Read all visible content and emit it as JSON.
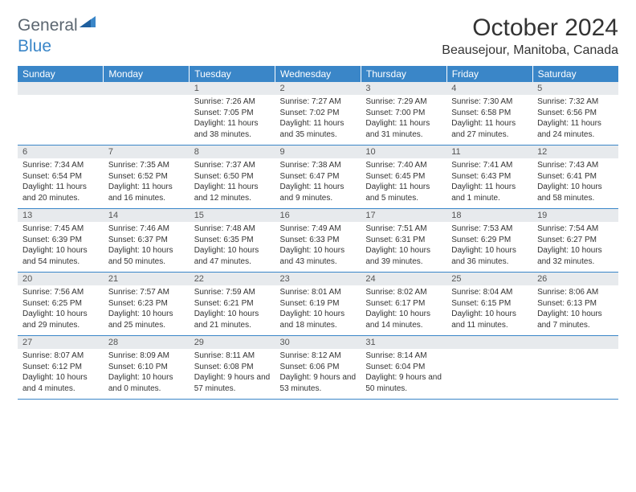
{
  "logo": {
    "text1": "General",
    "text2": "Blue"
  },
  "title": "October 2024",
  "location": "Beausejour, Manitoba, Canada",
  "dow_bg": "#3a86c8",
  "dow_color": "#ffffff",
  "daynum_bg": "#e7eaed",
  "border_color": "#3a86c8",
  "days_of_week": [
    "Sunday",
    "Monday",
    "Tuesday",
    "Wednesday",
    "Thursday",
    "Friday",
    "Saturday"
  ],
  "weeks": [
    [
      null,
      null,
      {
        "n": "1",
        "sr": "7:26 AM",
        "ss": "7:05 PM",
        "dl": "11 hours and 38 minutes."
      },
      {
        "n": "2",
        "sr": "7:27 AM",
        "ss": "7:02 PM",
        "dl": "11 hours and 35 minutes."
      },
      {
        "n": "3",
        "sr": "7:29 AM",
        "ss": "7:00 PM",
        "dl": "11 hours and 31 minutes."
      },
      {
        "n": "4",
        "sr": "7:30 AM",
        "ss": "6:58 PM",
        "dl": "11 hours and 27 minutes."
      },
      {
        "n": "5",
        "sr": "7:32 AM",
        "ss": "6:56 PM",
        "dl": "11 hours and 24 minutes."
      }
    ],
    [
      {
        "n": "6",
        "sr": "7:34 AM",
        "ss": "6:54 PM",
        "dl": "11 hours and 20 minutes."
      },
      {
        "n": "7",
        "sr": "7:35 AM",
        "ss": "6:52 PM",
        "dl": "11 hours and 16 minutes."
      },
      {
        "n": "8",
        "sr": "7:37 AM",
        "ss": "6:50 PM",
        "dl": "11 hours and 12 minutes."
      },
      {
        "n": "9",
        "sr": "7:38 AM",
        "ss": "6:47 PM",
        "dl": "11 hours and 9 minutes."
      },
      {
        "n": "10",
        "sr": "7:40 AM",
        "ss": "6:45 PM",
        "dl": "11 hours and 5 minutes."
      },
      {
        "n": "11",
        "sr": "7:41 AM",
        "ss": "6:43 PM",
        "dl": "11 hours and 1 minute."
      },
      {
        "n": "12",
        "sr": "7:43 AM",
        "ss": "6:41 PM",
        "dl": "10 hours and 58 minutes."
      }
    ],
    [
      {
        "n": "13",
        "sr": "7:45 AM",
        "ss": "6:39 PM",
        "dl": "10 hours and 54 minutes."
      },
      {
        "n": "14",
        "sr": "7:46 AM",
        "ss": "6:37 PM",
        "dl": "10 hours and 50 minutes."
      },
      {
        "n": "15",
        "sr": "7:48 AM",
        "ss": "6:35 PM",
        "dl": "10 hours and 47 minutes."
      },
      {
        "n": "16",
        "sr": "7:49 AM",
        "ss": "6:33 PM",
        "dl": "10 hours and 43 minutes."
      },
      {
        "n": "17",
        "sr": "7:51 AM",
        "ss": "6:31 PM",
        "dl": "10 hours and 39 minutes."
      },
      {
        "n": "18",
        "sr": "7:53 AM",
        "ss": "6:29 PM",
        "dl": "10 hours and 36 minutes."
      },
      {
        "n": "19",
        "sr": "7:54 AM",
        "ss": "6:27 PM",
        "dl": "10 hours and 32 minutes."
      }
    ],
    [
      {
        "n": "20",
        "sr": "7:56 AM",
        "ss": "6:25 PM",
        "dl": "10 hours and 29 minutes."
      },
      {
        "n": "21",
        "sr": "7:57 AM",
        "ss": "6:23 PM",
        "dl": "10 hours and 25 minutes."
      },
      {
        "n": "22",
        "sr": "7:59 AM",
        "ss": "6:21 PM",
        "dl": "10 hours and 21 minutes."
      },
      {
        "n": "23",
        "sr": "8:01 AM",
        "ss": "6:19 PM",
        "dl": "10 hours and 18 minutes."
      },
      {
        "n": "24",
        "sr": "8:02 AM",
        "ss": "6:17 PM",
        "dl": "10 hours and 14 minutes."
      },
      {
        "n": "25",
        "sr": "8:04 AM",
        "ss": "6:15 PM",
        "dl": "10 hours and 11 minutes."
      },
      {
        "n": "26",
        "sr": "8:06 AM",
        "ss": "6:13 PM",
        "dl": "10 hours and 7 minutes."
      }
    ],
    [
      {
        "n": "27",
        "sr": "8:07 AM",
        "ss": "6:12 PM",
        "dl": "10 hours and 4 minutes."
      },
      {
        "n": "28",
        "sr": "8:09 AM",
        "ss": "6:10 PM",
        "dl": "10 hours and 0 minutes."
      },
      {
        "n": "29",
        "sr": "8:11 AM",
        "ss": "6:08 PM",
        "dl": "9 hours and 57 minutes."
      },
      {
        "n": "30",
        "sr": "8:12 AM",
        "ss": "6:06 PM",
        "dl": "9 hours and 53 minutes."
      },
      {
        "n": "31",
        "sr": "8:14 AM",
        "ss": "6:04 PM",
        "dl": "9 hours and 50 minutes."
      },
      null,
      null
    ]
  ],
  "labels": {
    "sunrise": "Sunrise:",
    "sunset": "Sunset:",
    "daylight": "Daylight:"
  }
}
